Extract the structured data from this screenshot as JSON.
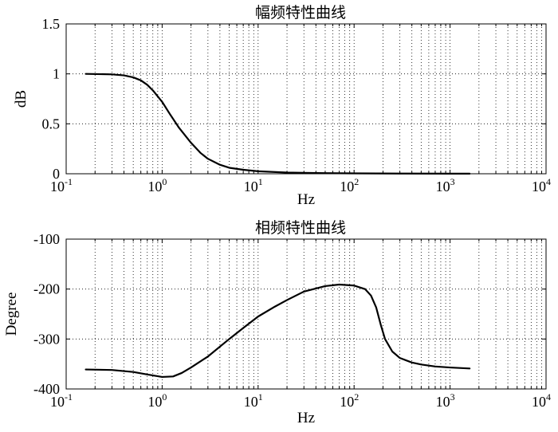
{
  "chart_data": [
    {
      "type": "line",
      "title": "幅频特性曲线",
      "xlabel": "Hz",
      "ylabel": "dB",
      "x_scale": "log",
      "xlim": [
        0.1,
        10000
      ],
      "ylim": [
        0,
        1.5
      ],
      "grid": "dotted",
      "x_ticks": [
        {
          "base": "10",
          "exp": "-1"
        },
        {
          "base": "10",
          "exp": "0"
        },
        {
          "base": "10",
          "exp": "1"
        },
        {
          "base": "10",
          "exp": "2"
        },
        {
          "base": "10",
          "exp": "3"
        },
        {
          "base": "10",
          "exp": "4"
        }
      ],
      "y_ticks": [
        "0",
        "0.5",
        "1",
        "1.5"
      ],
      "series": [
        {
          "color": "#000000",
          "points": [
            [
              0.16,
              1.0
            ],
            [
              0.3,
              0.995
            ],
            [
              0.4,
              0.985
            ],
            [
              0.5,
              0.965
            ],
            [
              0.6,
              0.935
            ],
            [
              0.7,
              0.89
            ],
            [
              0.8,
              0.835
            ],
            [
              1.0,
              0.72
            ],
            [
              1.2,
              0.6
            ],
            [
              1.5,
              0.46
            ],
            [
              2.0,
              0.31
            ],
            [
              2.5,
              0.21
            ],
            [
              3.0,
              0.15
            ],
            [
              4.0,
              0.09
            ],
            [
              5.0,
              0.06
            ],
            [
              7.0,
              0.04
            ],
            [
              10,
              0.025
            ],
            [
              20,
              0.012
            ],
            [
              50,
              0.006
            ],
            [
              100,
              0.004
            ],
            [
              300,
              0.002
            ],
            [
              1000,
              0.001
            ],
            [
              1600,
              0.001
            ]
          ]
        }
      ]
    },
    {
      "type": "line",
      "title": "相频特性曲线",
      "xlabel": "Hz",
      "ylabel": "Degree",
      "x_scale": "log",
      "xlim": [
        0.1,
        10000
      ],
      "ylim": [
        -400,
        -100
      ],
      "grid": "dotted",
      "x_ticks": [
        {
          "base": "10",
          "exp": "-1"
        },
        {
          "base": "10",
          "exp": "0"
        },
        {
          "base": "10",
          "exp": "1"
        },
        {
          "base": "10",
          "exp": "2"
        },
        {
          "base": "10",
          "exp": "3"
        },
        {
          "base": "10",
          "exp": "4"
        }
      ],
      "y_ticks": [
        "-400",
        "-300",
        "-200",
        "-100"
      ],
      "series": [
        {
          "color": "#000000",
          "points": [
            [
              0.16,
              -361
            ],
            [
              0.3,
              -362
            ],
            [
              0.5,
              -366
            ],
            [
              0.7,
              -371
            ],
            [
              1.0,
              -376
            ],
            [
              1.3,
              -375
            ],
            [
              1.6,
              -368
            ],
            [
              2.0,
              -357
            ],
            [
              3.0,
              -335
            ],
            [
              5.0,
              -300
            ],
            [
              7.0,
              -278
            ],
            [
              10,
              -255
            ],
            [
              15,
              -235
            ],
            [
              20,
              -222
            ],
            [
              30,
              -205
            ],
            [
              50,
              -194
            ],
            [
              70,
              -191
            ],
            [
              100,
              -193
            ],
            [
              130,
              -200
            ],
            [
              150,
              -213
            ],
            [
              170,
              -237
            ],
            [
              190,
              -272
            ],
            [
              210,
              -300
            ],
            [
              250,
              -325
            ],
            [
              300,
              -338
            ],
            [
              400,
              -347
            ],
            [
              500,
              -351
            ],
            [
              700,
              -355
            ],
            [
              1000,
              -357
            ],
            [
              1600,
              -359
            ]
          ]
        }
      ]
    }
  ]
}
